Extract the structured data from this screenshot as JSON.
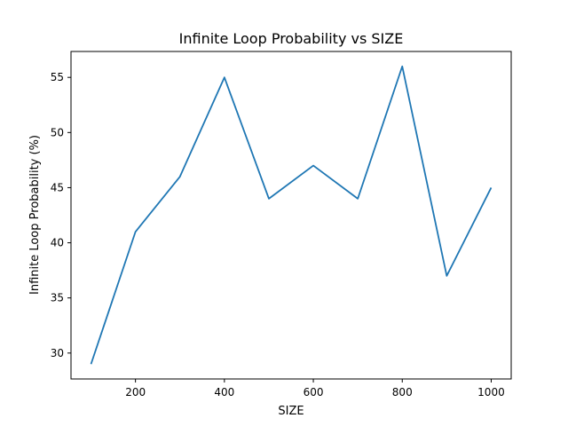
{
  "chart_data": {
    "type": "line",
    "title": "Infinite Loop Probability vs SIZE",
    "xlabel": "SIZE",
    "ylabel": "Infinite Loop Probability (%)",
    "x": [
      100,
      200,
      300,
      400,
      500,
      600,
      700,
      800,
      900,
      1000
    ],
    "series": [
      {
        "values": [
          29,
          41,
          46,
          55,
          44,
          47,
          44,
          56,
          37,
          45
        ],
        "color": "#1f77b4"
      }
    ],
    "xlim": [
      55,
      1045
    ],
    "ylim": [
      27.65,
      57.35
    ],
    "xticks": [
      200,
      400,
      600,
      800,
      1000
    ],
    "yticks": [
      30,
      35,
      40,
      45,
      50,
      55
    ],
    "grid": false,
    "legend": "none"
  }
}
